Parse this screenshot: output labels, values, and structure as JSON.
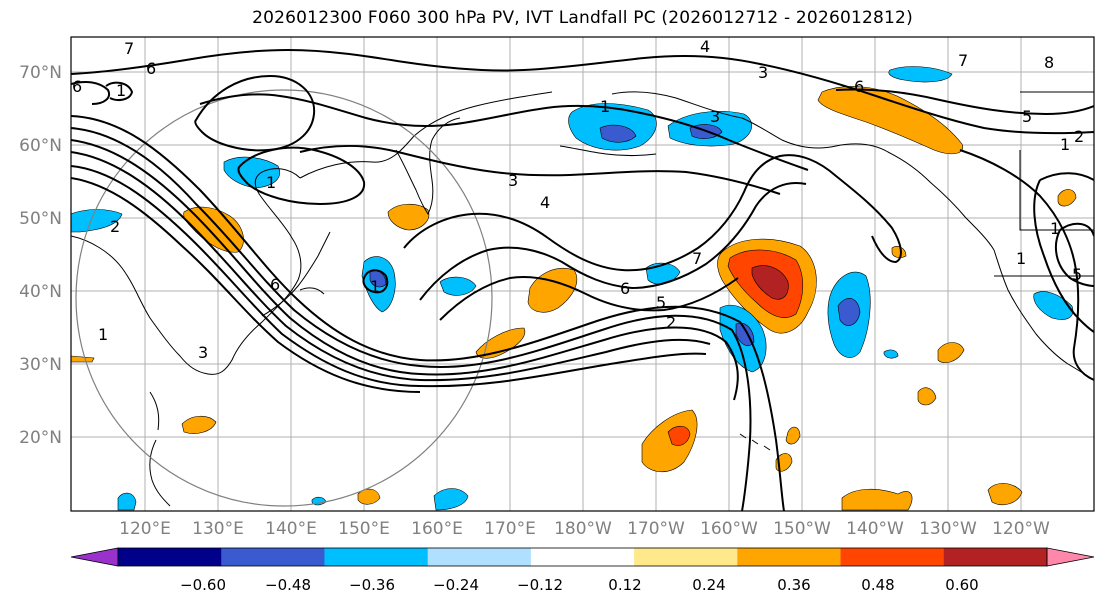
{
  "title": "2026012300 F060 300 hPa PV, IVT Landfall PC (2026012712 - 2026012812)",
  "map": {
    "lat_labels": [
      "70°N",
      "60°N",
      "50°N",
      "40°N",
      "30°N",
      "20°N"
    ],
    "lon_labels": [
      "120°E",
      "130°E",
      "140°E",
      "150°E",
      "160°E",
      "170°E",
      "180°W",
      "170°W",
      "160°W",
      "150°W",
      "140°W",
      "130°W",
      "120°W"
    ],
    "contour_labels": [
      "7",
      "6",
      "6",
      "4",
      "3",
      "6",
      "1",
      "5",
      "2",
      "1",
      "3",
      "4",
      "7",
      "6",
      "5",
      "2",
      "1",
      "3",
      "1",
      "6",
      "1",
      "1",
      "1",
      "8",
      "7",
      "3",
      "5",
      "1",
      "2"
    ],
    "colors": {
      "positive_strong": "#ff4500",
      "positive_mid": "#ffa500",
      "negative_mid": "#00bfff",
      "negative_strong": "#3a5bd0"
    }
  },
  "colorbar": {
    "ticks": [
      "−0.60",
      "−0.48",
      "−0.36",
      "−0.24",
      "−0.12",
      "0.12",
      "0.24",
      "0.36",
      "0.48",
      "0.60"
    ],
    "colors": [
      "#9932cc",
      "#00008b",
      "#3a5bd0",
      "#00bfff",
      "#b0e0ff",
      "#ffffff",
      "#ffe98a",
      "#ffa500",
      "#ff4500",
      "#b22222",
      "#ff88aa"
    ]
  }
}
